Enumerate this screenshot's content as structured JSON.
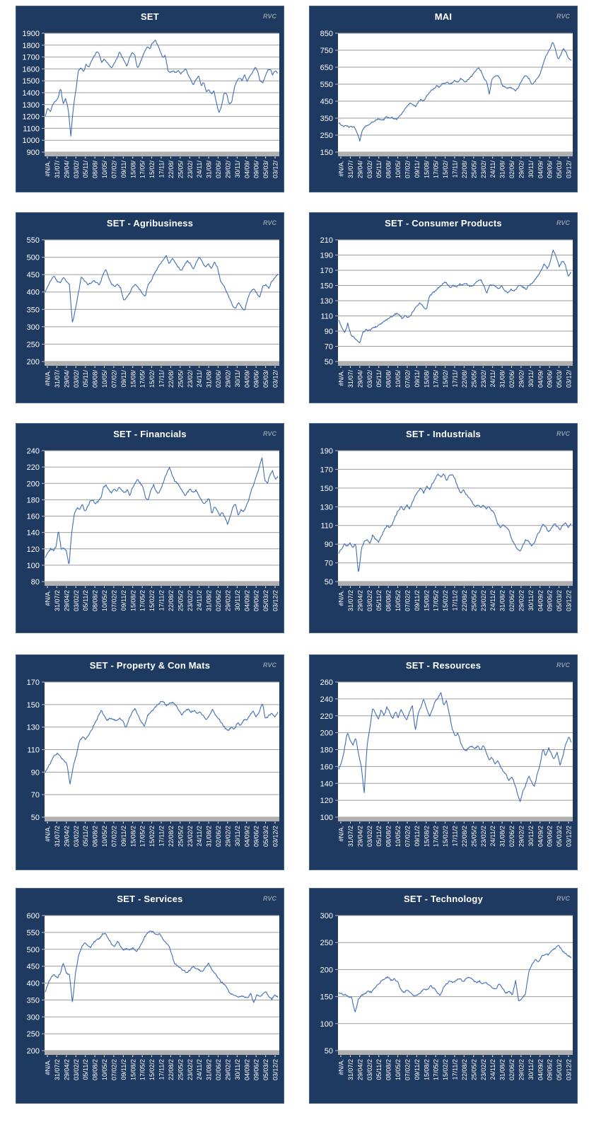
{
  "watermark": "RVC",
  "colors": {
    "panel_bg": "#1F3A60",
    "panel_border": "#41628E",
    "title_text": "#FFFFFF",
    "watermark_text": "#8F9AA9",
    "plot_bg": "#FFFFFF",
    "gridline": "#9B9B9B",
    "baseline_band": "#B0B0B0",
    "series_line": "#3E6DB5",
    "axis_text": "#FFFFFF"
  },
  "x_labels": {
    "short": [
      "#N/A.",
      "31/07/",
      "29/04/",
      "03/02/",
      "05/11/",
      "08/08/",
      "10/05/",
      "07/02/",
      "09/11/",
      "15/08/",
      "17/05/",
      "15/02/",
      "17/11/",
      "22/08/",
      "25/05/",
      "23/02/",
      "24/11/",
      "31/08/",
      "02/06/",
      "29/02/",
      "30/11/",
      "04/09/",
      "09/06/",
      "05/03/",
      "03/12/"
    ],
    "long": [
      "#N/A.",
      "31/07/2",
      "29/04/2",
      "03/02/2",
      "05/11/2",
      "08/08/2",
      "10/05/2",
      "07/02/2",
      "09/11/2",
      "15/08/2",
      "17/05/2",
      "15/02/2",
      "17/11/2",
      "22/08/2",
      "25/05/2",
      "23/02/2",
      "24/11/2",
      "31/08/2",
      "02/06/2",
      "29/02/2",
      "30/11/2",
      "04/09/2",
      "09/06/2",
      "05/03/2",
      "03/12/2"
    ]
  },
  "chart_data": [
    {
      "type": "line",
      "title": "SET",
      "labels": "short",
      "ylim": [
        900,
        1900
      ],
      "ystep": 100,
      "grid": true,
      "legend": "none",
      "values": [
        1210,
        1270,
        1240,
        1305,
        1330,
        1355,
        1440,
        1310,
        1350,
        1260,
        1030,
        1280,
        1430,
        1590,
        1605,
        1580,
        1640,
        1615,
        1660,
        1700,
        1740,
        1730,
        1650,
        1685,
        1655,
        1630,
        1605,
        1655,
        1680,
        1745,
        1700,
        1660,
        1620,
        1700,
        1735,
        1715,
        1605,
        1640,
        1700,
        1755,
        1790,
        1775,
        1820,
        1843,
        1800,
        1745,
        1695,
        1715,
        1580,
        1570,
        1585,
        1565,
        1590,
        1555,
        1580,
        1600,
        1545,
        1505,
        1465,
        1515,
        1540,
        1455,
        1490,
        1405,
        1425,
        1390,
        1415,
        1305,
        1235,
        1285,
        1400,
        1385,
        1295,
        1330,
        1445,
        1500,
        1525,
        1505,
        1550,
        1495,
        1540,
        1565,
        1615,
        1585,
        1505,
        1480,
        1535,
        1590,
        1600,
        1550,
        1585,
        1565
      ]
    },
    {
      "type": "line",
      "title": "MAI",
      "labels": "short",
      "ylim": [
        150,
        850
      ],
      "ystep": 100,
      "grid": true,
      "legend": "none",
      "values": [
        322,
        310,
        302,
        306,
        298,
        300,
        296,
        262,
        215,
        282,
        300,
        308,
        318,
        328,
        338,
        348,
        342,
        338,
        358,
        350,
        355,
        348,
        344,
        362,
        382,
        402,
        422,
        438,
        428,
        420,
        442,
        460,
        450,
        472,
        492,
        512,
        525,
        540,
        532,
        548,
        556,
        562,
        548,
        558,
        572,
        562,
        582,
        576,
        562,
        578,
        592,
        612,
        632,
        648,
        622,
        585,
        562,
        492,
        582,
        596,
        602,
        582,
        542,
        532,
        526,
        532,
        522,
        512,
        532,
        562,
        592,
        602,
        582,
        548,
        562,
        582,
        602,
        652,
        702,
        732,
        762,
        800,
        758,
        692,
        722,
        762,
        738,
        702,
        692
      ]
    },
    {
      "type": "line",
      "title": "SET - Agribusiness",
      "labels": "short",
      "ylim": [
        200,
        550
      ],
      "ystep": 50,
      "grid": true,
      "legend": "none",
      "values": [
        400,
        418,
        436,
        446,
        430,
        426,
        442,
        432,
        422,
        310,
        352,
        398,
        446,
        432,
        422,
        426,
        432,
        426,
        421,
        446,
        466,
        442,
        422,
        416,
        421,
        411,
        376,
        386,
        396,
        416,
        421,
        411,
        396,
        386,
        421,
        431,
        451,
        466,
        481,
        491,
        506,
        481,
        496,
        486,
        471,
        461,
        476,
        491,
        481,
        466,
        486,
        501,
        486,
        471,
        481,
        466,
        486,
        471,
        431,
        421,
        401,
        381,
        361,
        351,
        371,
        356,
        346,
        381,
        401,
        411,
        396,
        386,
        416,
        421,
        411,
        431,
        441,
        450
      ]
    },
    {
      "type": "line",
      "title": "SET - Consumer Products",
      "labels": "short",
      "ylim": [
        50,
        210
      ],
      "ystep": 20,
      "grid": true,
      "legend": "none",
      "values": [
        105,
        95,
        88,
        100,
        85,
        82,
        78,
        74,
        88,
        92,
        91,
        93,
        95,
        97,
        100,
        103,
        105,
        108,
        110,
        113,
        112,
        107,
        110,
        108,
        112,
        118,
        124,
        127,
        122,
        118,
        135,
        140,
        143,
        147,
        150,
        155,
        152,
        147,
        150,
        148,
        152,
        150,
        153,
        150,
        148,
        152,
        156,
        158,
        150,
        140,
        150,
        151,
        149,
        146,
        150,
        143,
        140,
        145,
        142,
        147,
        150,
        148,
        145,
        150,
        153,
        158,
        163,
        170,
        178,
        172,
        180,
        197,
        188,
        175,
        182,
        178,
        162,
        168
      ]
    },
    {
      "type": "line",
      "title": "SET - Financials",
      "labels": "long",
      "ylim": [
        80,
        240
      ],
      "ystep": 20,
      "grid": true,
      "legend": "none",
      "values": [
        110,
        115,
        120,
        118,
        122,
        143,
        120,
        122,
        118,
        99,
        140,
        163,
        170,
        168,
        175,
        165,
        172,
        178,
        180,
        175,
        178,
        182,
        195,
        198,
        192,
        188,
        194,
        190,
        195,
        192,
        188,
        192,
        185,
        195,
        200,
        205,
        200,
        195,
        182,
        180,
        192,
        198,
        190,
        188,
        195,
        205,
        213,
        220,
        210,
        203,
        200,
        195,
        190,
        185,
        190,
        193,
        188,
        192,
        186,
        180,
        175,
        178,
        183,
        163,
        172,
        168,
        160,
        165,
        158,
        150,
        160,
        172,
        175,
        160,
        168,
        165,
        172,
        180,
        192,
        200,
        210,
        220,
        232,
        205,
        200,
        210,
        215,
        205,
        208
      ]
    },
    {
      "type": "line",
      "title": "SET - Industrials",
      "labels": "long",
      "ylim": [
        50,
        190
      ],
      "ystep": 20,
      "grid": true,
      "legend": "none",
      "values": [
        80,
        85,
        90,
        88,
        91,
        87,
        90,
        57,
        85,
        93,
        95,
        90,
        100,
        95,
        92,
        98,
        105,
        110,
        108,
        112,
        120,
        126,
        130,
        127,
        132,
        128,
        135,
        142,
        147,
        150,
        145,
        152,
        148,
        155,
        160,
        165,
        162,
        166,
        158,
        163,
        165,
        160,
        150,
        145,
        148,
        143,
        140,
        135,
        130,
        132,
        129,
        131,
        128,
        130,
        126,
        122,
        112,
        108,
        111,
        108,
        105,
        95,
        90,
        85,
        83,
        90,
        95,
        93,
        88,
        92,
        100,
        105,
        112,
        108,
        103,
        107,
        112,
        109,
        106,
        110,
        113,
        108,
        112
      ]
    },
    {
      "type": "line",
      "title": "SET - Property & Con Mats",
      "labels": "long",
      "ylim": [
        50,
        170
      ],
      "ystep": 20,
      "grid": true,
      "legend": "none",
      "values": [
        90,
        95,
        100,
        105,
        107,
        103,
        100,
        97,
        79,
        95,
        105,
        118,
        121,
        119,
        123,
        128,
        133,
        139,
        145,
        140,
        136,
        138,
        137,
        135,
        138,
        136,
        129,
        137,
        143,
        147,
        140,
        134,
        131,
        140,
        143,
        146,
        149,
        152,
        153,
        149,
        151,
        152,
        150,
        145,
        141,
        144,
        146,
        143,
        145,
        142,
        143,
        140,
        136,
        141,
        146,
        140,
        137,
        133,
        129,
        127,
        130,
        128,
        134,
        131,
        137,
        136,
        141,
        144,
        139,
        143,
        152,
        137,
        140,
        142,
        139,
        143
      ]
    },
    {
      "type": "line",
      "title": "SET - Resources",
      "labels": "long",
      "ylim": [
        100,
        260
      ],
      "ystep": 20,
      "grid": true,
      "legend": "none",
      "values": [
        157,
        165,
        180,
        200,
        192,
        185,
        195,
        175,
        160,
        128,
        185,
        205,
        230,
        222,
        215,
        228,
        220,
        230,
        224,
        216,
        225,
        218,
        228,
        221,
        215,
        225,
        232,
        202,
        222,
        231,
        240,
        228,
        219,
        228,
        237,
        241,
        248,
        232,
        238,
        222,
        205,
        196,
        200,
        188,
        181,
        179,
        183,
        184,
        181,
        184,
        179,
        185,
        177,
        168,
        171,
        163,
        167,
        160,
        155,
        151,
        143,
        148,
        140,
        128,
        118,
        131,
        139,
        149,
        141,
        136,
        151,
        163,
        181,
        172,
        182,
        175,
        168,
        178,
        161,
        172,
        186,
        195,
        189
      ]
    },
    {
      "type": "line",
      "title": "SET - Services",
      "labels": "long",
      "ylim": [
        200,
        600
      ],
      "ystep": 50,
      "grid": true,
      "legend": "none",
      "values": [
        375,
        400,
        420,
        425,
        415,
        430,
        460,
        430,
        425,
        340,
        430,
        480,
        505,
        520,
        512,
        505,
        520,
        527,
        533,
        545,
        548,
        530,
        516,
        510,
        524,
        507,
        498,
        502,
        497,
        504,
        495,
        500,
        520,
        538,
        548,
        556,
        549,
        542,
        546,
        530,
        520,
        508,
        480,
        455,
        450,
        442,
        436,
        430,
        440,
        448,
        444,
        438,
        432,
        445,
        460,
        442,
        430,
        420,
        405,
        398,
        388,
        372,
        365,
        362,
        358,
        363,
        359,
        356,
        370,
        341,
        364,
        360,
        368,
        374,
        361,
        352,
        365,
        359
      ]
    },
    {
      "type": "line",
      "title": "SET - Technology",
      "labels": "long",
      "ylim": [
        50,
        300
      ],
      "ystep": 50,
      "grid": true,
      "legend": "none",
      "values": [
        158,
        155,
        153,
        150,
        148,
        120,
        145,
        152,
        155,
        160,
        158,
        165,
        172,
        178,
        183,
        186,
        180,
        183,
        177,
        162,
        158,
        163,
        156,
        150,
        153,
        158,
        165,
        162,
        170,
        166,
        158,
        151,
        168,
        174,
        179,
        176,
        181,
        184,
        178,
        183,
        186,
        180,
        176,
        179,
        173,
        176,
        171,
        166,
        163,
        174,
        166,
        156,
        161,
        153,
        180,
        140,
        148,
        155,
        195,
        210,
        218,
        214,
        224,
        229,
        227,
        234,
        239,
        245,
        237,
        230,
        226,
        222
      ]
    }
  ]
}
